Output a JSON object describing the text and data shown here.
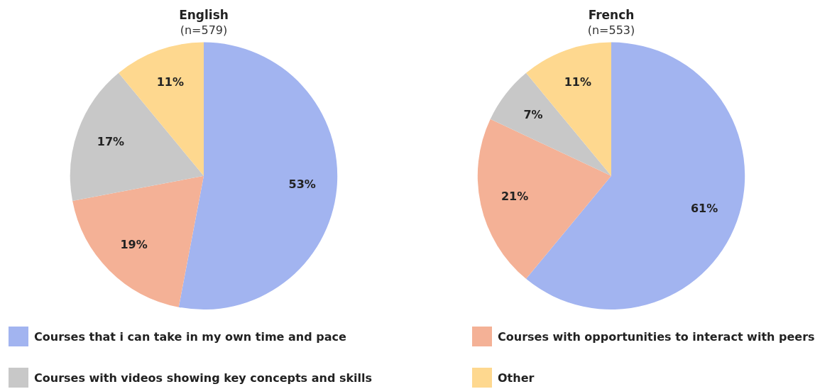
{
  "chart_data": [
    {
      "type": "pie",
      "title": "English",
      "subtitle": "(n=579)",
      "categories": [
        "Courses that i can take in my own time and pace",
        "Courses with opportunities to interact with peers",
        "Courses with videos showing key concepts and skills",
        "Other"
      ],
      "values": [
        53,
        19,
        17,
        11
      ],
      "colors": [
        "#a2b4f0",
        "#f4b196",
        "#c8c8c8",
        "#fed88f"
      ],
      "value_labels": [
        "53%",
        "19%",
        "17%",
        "11%"
      ],
      "legend": "bottom"
    },
    {
      "type": "pie",
      "title": "French",
      "subtitle": "(n=553)",
      "categories": [
        null,
        null,
        null,
        null
      ],
      "values": [
        61,
        21,
        7,
        11
      ],
      "colors": [
        "#a2b4f0",
        "#f4b196",
        "#c8c8c8",
        "#fed88f"
      ],
      "value_labels": [
        "61%",
        "21%",
        "7%",
        "11%"
      ]
    }
  ]
}
